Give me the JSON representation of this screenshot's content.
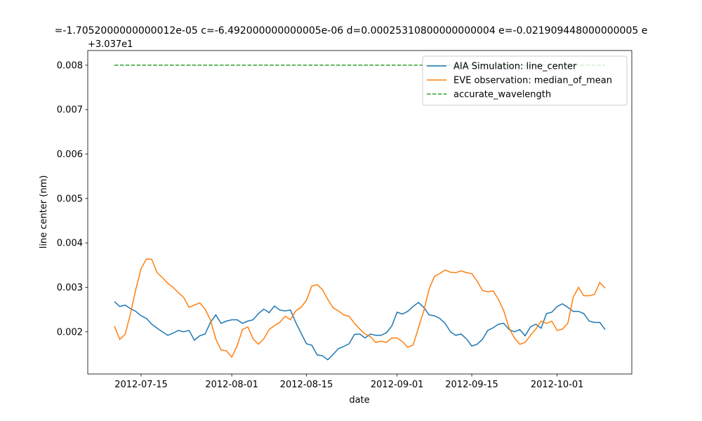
{
  "chart_data": {
    "type": "line",
    "title": "=-1.7052000000000012e-05 c=-6.492000000000005e-06 d=0.00025310800000000004 e=-0.021909448000000005 e",
    "y_offset_label": "+3.037e1",
    "xlabel": "date",
    "ylabel": "line center (nm)",
    "legend": "upper right",
    "xlim": [
      "2012-07-05",
      "2012-10-15"
    ],
    "xticks": [
      "2012-07-15",
      "2012-08-01",
      "2012-08-15",
      "2012-09-01",
      "2012-09-15",
      "2012-10-01"
    ],
    "ylim": [
      0.00105,
      0.00833
    ],
    "yticks": [
      0.002,
      0.003,
      0.004,
      0.005,
      0.006,
      0.007,
      0.008
    ],
    "x": [
      "2012-07-10",
      "2012-07-11",
      "2012-07-12",
      "2012-07-13",
      "2012-07-14",
      "2012-07-15",
      "2012-07-16",
      "2012-07-17",
      "2012-07-18",
      "2012-07-19",
      "2012-07-20",
      "2012-07-21",
      "2012-07-22",
      "2012-07-23",
      "2012-07-24",
      "2012-07-25",
      "2012-07-26",
      "2012-07-27",
      "2012-07-28",
      "2012-07-29",
      "2012-07-30",
      "2012-07-31",
      "2012-08-01",
      "2012-08-02",
      "2012-08-03",
      "2012-08-04",
      "2012-08-05",
      "2012-08-06",
      "2012-08-07",
      "2012-08-08",
      "2012-08-09",
      "2012-08-10",
      "2012-08-11",
      "2012-08-12",
      "2012-08-13",
      "2012-08-14",
      "2012-08-15",
      "2012-08-16",
      "2012-08-17",
      "2012-08-18",
      "2012-08-19",
      "2012-08-20",
      "2012-08-21",
      "2012-08-22",
      "2012-08-23",
      "2012-08-24",
      "2012-08-25",
      "2012-08-26",
      "2012-08-27",
      "2012-08-28",
      "2012-08-29",
      "2012-08-30",
      "2012-08-31",
      "2012-09-01",
      "2012-09-02",
      "2012-09-03",
      "2012-09-04",
      "2012-09-05",
      "2012-09-06",
      "2012-09-07",
      "2012-09-08",
      "2012-09-09",
      "2012-09-10",
      "2012-09-11",
      "2012-09-12",
      "2012-09-13",
      "2012-09-14",
      "2012-09-15",
      "2012-09-16",
      "2012-09-17",
      "2012-09-18",
      "2012-09-19",
      "2012-09-20",
      "2012-09-21",
      "2012-09-22",
      "2012-09-23",
      "2012-09-24",
      "2012-09-25",
      "2012-09-26",
      "2012-09-27",
      "2012-09-28",
      "2012-09-29",
      "2012-09-30",
      "2012-10-01",
      "2012-10-02",
      "2012-10-03",
      "2012-10-04",
      "2012-10-05",
      "2012-10-06",
      "2012-10-07",
      "2012-10-08",
      "2012-10-09",
      "2012-10-10"
    ],
    "series": [
      {
        "name": "AIA Simulation: line_center",
        "color": "#1f77b4",
        "dashed": false,
        "values": [
          0.00268,
          0.00257,
          0.0026,
          0.00252,
          0.00246,
          0.00236,
          0.0023,
          0.00217,
          0.00208,
          0.002,
          0.00192,
          0.00197,
          0.00203,
          0.002,
          0.00203,
          0.00181,
          0.00191,
          0.00195,
          0.00221,
          0.00238,
          0.00219,
          0.00224,
          0.00227,
          0.00227,
          0.00219,
          0.00224,
          0.00227,
          0.00241,
          0.00251,
          0.00243,
          0.00258,
          0.00249,
          0.00247,
          0.00249,
          0.00221,
          0.00197,
          0.00173,
          0.0017,
          0.00148,
          0.00146,
          0.00137,
          0.00149,
          0.00162,
          0.00167,
          0.00173,
          0.00194,
          0.00195,
          0.00186,
          0.00195,
          0.00192,
          0.00192,
          0.00198,
          0.00213,
          0.00244,
          0.0024,
          0.00246,
          0.00257,
          0.00266,
          0.00255,
          0.00238,
          0.00236,
          0.0023,
          0.00219,
          0.002,
          0.00192,
          0.00195,
          0.00184,
          0.00168,
          0.00172,
          0.00183,
          0.00203,
          0.00209,
          0.00217,
          0.00219,
          0.00205,
          0.002,
          0.00205,
          0.00191,
          0.00211,
          0.00217,
          0.00208,
          0.00241,
          0.00244,
          0.00257,
          0.00263,
          0.00255,
          0.00246,
          0.00246,
          0.00241,
          0.00224,
          0.00221,
          0.00221,
          0.00205
        ]
      },
      {
        "name": "EVE observation: median_of_mean",
        "color": "#ff7f0e",
        "dashed": false,
        "values": [
          0.00213,
          0.00183,
          0.00194,
          0.0024,
          0.00295,
          0.00342,
          0.00364,
          0.00363,
          0.00333,
          0.00322,
          0.00309,
          0.003,
          0.00288,
          0.00277,
          0.00255,
          0.0026,
          0.00265,
          0.00251,
          0.00227,
          0.00184,
          0.00159,
          0.00157,
          0.00143,
          0.00168,
          0.00205,
          0.00211,
          0.00184,
          0.00172,
          0.00184,
          0.00205,
          0.00214,
          0.00221,
          0.00235,
          0.00227,
          0.00247,
          0.00255,
          0.00271,
          0.00303,
          0.00306,
          0.00295,
          0.00273,
          0.00254,
          0.00247,
          0.00238,
          0.00235,
          0.00219,
          0.00206,
          0.00195,
          0.00189,
          0.00176,
          0.00179,
          0.00176,
          0.00186,
          0.00186,
          0.00178,
          0.00165,
          0.0017,
          0.00209,
          0.00247,
          0.00296,
          0.00325,
          0.00331,
          0.00339,
          0.00334,
          0.00333,
          0.00337,
          0.00333,
          0.00331,
          0.00314,
          0.00293,
          0.0029,
          0.00292,
          0.00273,
          0.00247,
          0.00208,
          0.00186,
          0.00172,
          0.00176,
          0.00192,
          0.00206,
          0.00224,
          0.00219,
          0.00224,
          0.00203,
          0.00206,
          0.00219,
          0.00277,
          0.003,
          0.00281,
          0.00281,
          0.00284,
          0.00311,
          0.00298
        ]
      },
      {
        "name": "accurate_wavelength",
        "color": "#2ca02c",
        "dashed": true,
        "x": [
          "2012-07-10",
          "2012-10-10"
        ],
        "values": [
          0.008,
          0.008
        ]
      }
    ]
  }
}
